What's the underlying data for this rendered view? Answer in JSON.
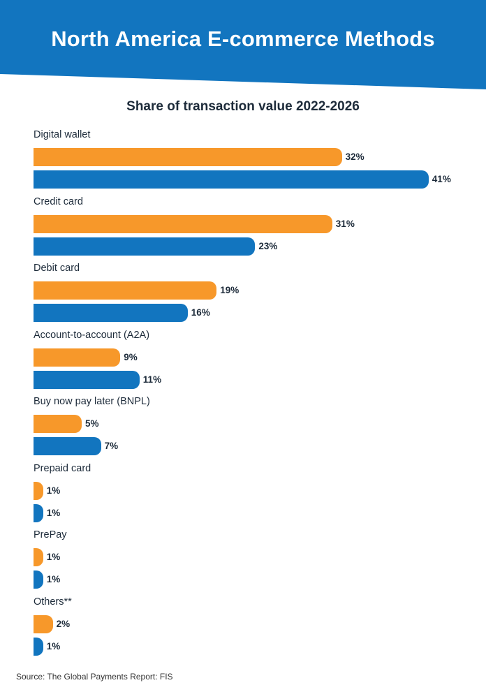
{
  "header": {
    "title": "North America E-commerce Methods"
  },
  "colors": {
    "banner": "#1275bf",
    "series_2022": "#f7982a",
    "series_2026": "#1275bf"
  },
  "chart_data": {
    "type": "bar",
    "orientation": "horizontal",
    "title": "Share of transaction value 2022-2026",
    "categories": [
      "Digital wallet",
      "Credit card",
      "Debit card",
      "Account-to-account (A2A)",
      "Buy now pay later (BNPL)",
      "Prepaid card",
      "PrePay",
      "Others**"
    ],
    "series": [
      {
        "values": [
          32,
          31,
          19,
          9,
          5,
          1,
          1,
          2
        ],
        "labels": [
          "32%",
          "31%",
          "19%",
          "9%",
          "5%",
          "1%",
          "1%",
          "2%"
        ]
      },
      {
        "values": [
          41,
          23,
          16,
          11,
          7,
          1,
          1,
          1
        ],
        "labels": [
          "41%",
          "23%",
          "16%",
          "11%",
          "7%",
          "1%",
          "1%",
          "1%"
        ]
      }
    ],
    "value_format": "percent",
    "grid": false,
    "legend": "none"
  },
  "footer": {
    "source": "Source: The Global Payments Report: FIS"
  }
}
